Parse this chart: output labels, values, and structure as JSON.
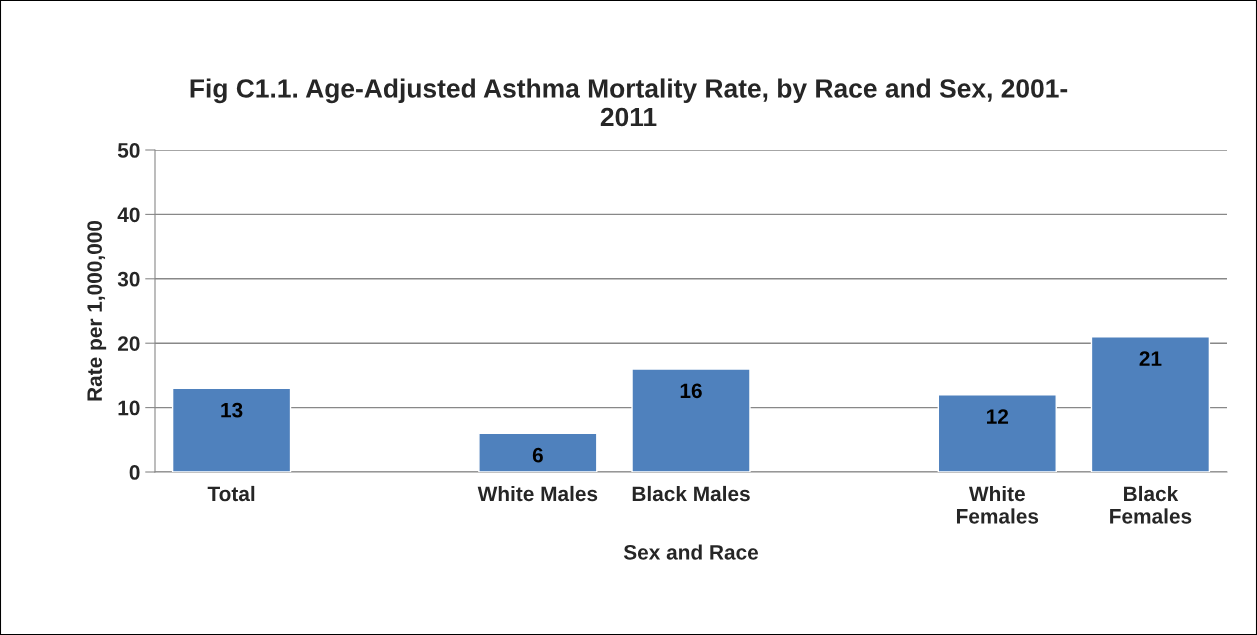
{
  "chart_data": {
    "type": "bar",
    "title": "Fig C1.1. Age-Adjusted Asthma Mortality Rate, by Race and Sex, 2001-\n2011",
    "xlabel": "Sex and Race",
    "ylabel": "Rate per 1,000,000",
    "categories": [
      "Total",
      null,
      "White Males",
      "Black Males",
      null,
      "White Females",
      "Black Females"
    ],
    "values": [
      13,
      null,
      6,
      16,
      null,
      12,
      21
    ],
    "color": "#4f81bd",
    "ylim": [
      0,
      50
    ],
    "yticks": [
      0,
      10,
      20,
      30,
      40,
      50
    ],
    "grid": "y",
    "data_labels": true
  }
}
